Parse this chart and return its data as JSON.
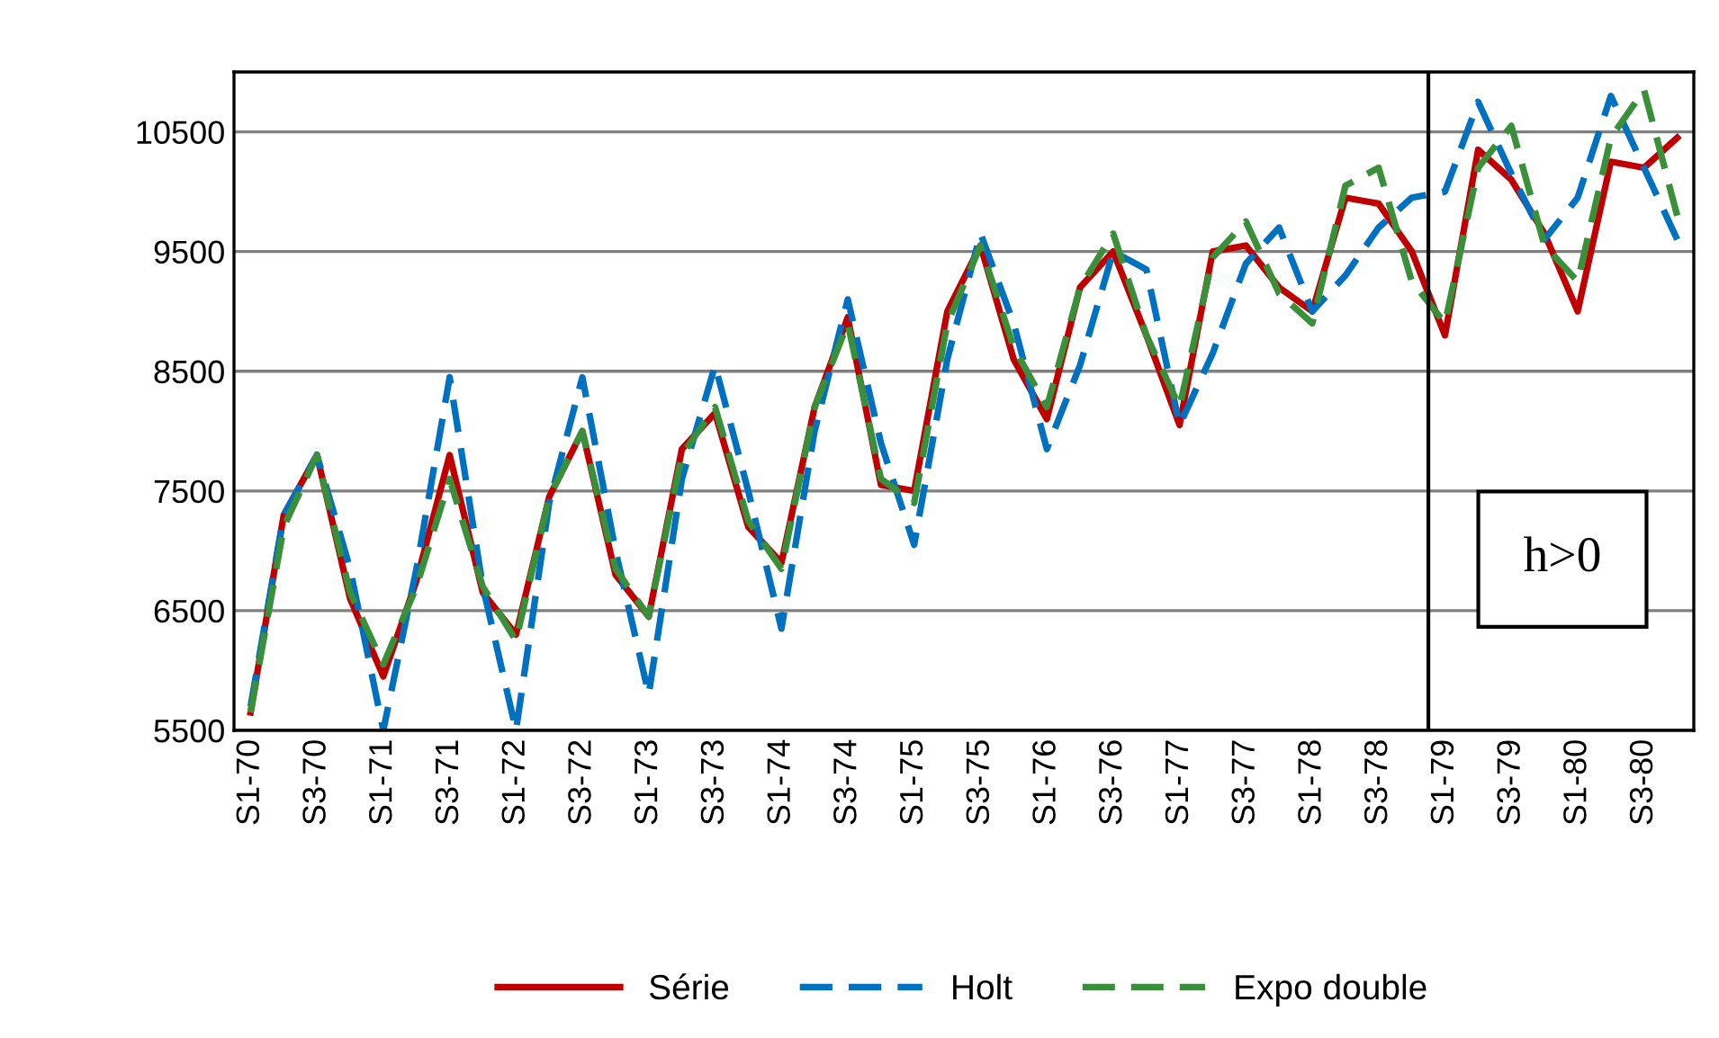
{
  "chart_data": {
    "type": "line",
    "categories": [
      "S1-70",
      null,
      "S3-70",
      null,
      "S1-71",
      null,
      "S3-71",
      null,
      "S1-72",
      null,
      "S3-72",
      null,
      "S1-73",
      null,
      "S3-73",
      null,
      "S1-74",
      null,
      "S3-74",
      null,
      "S1-75",
      null,
      "S3-75",
      null,
      "S1-76",
      null,
      "S3-76",
      null,
      "S1-77",
      null,
      "S3-77",
      null,
      "S1-78",
      null,
      "S3-78",
      null,
      "S1-79",
      null,
      "S3-79",
      null,
      "S1-80",
      null,
      "S3-80",
      null
    ],
    "series": [
      {
        "name": "Série",
        "color": "#c00000",
        "line_style": "solid",
        "values": [
          5650,
          7300,
          7800,
          6600,
          5950,
          6750,
          7800,
          6650,
          6300,
          7450,
          8000,
          6800,
          6450,
          7850,
          8150,
          7200,
          6900,
          8200,
          8950,
          7550,
          7500,
          9000,
          9550,
          8600,
          8100,
          9200,
          9500,
          8800,
          8050,
          9500,
          9550,
          9200,
          9000,
          9950,
          9900,
          9500,
          8800,
          10350,
          10100,
          9650,
          9000,
          10250,
          10200,
          10450
        ]
      },
      {
        "name": "Holt",
        "color": "#0070c0",
        "line_style": "dashed",
        "values": [
          5700,
          7300,
          7800,
          6850,
          5500,
          6850,
          8450,
          6700,
          5500,
          7400,
          8450,
          7000,
          5800,
          7600,
          8550,
          7500,
          6350,
          8000,
          9100,
          7900,
          7050,
          8600,
          9650,
          8900,
          7850,
          8550,
          9500,
          9350,
          8050,
          8650,
          9400,
          9700,
          9000,
          9300,
          9700,
          9950,
          10000,
          10750,
          10150,
          9600,
          9950,
          10800,
          10200,
          9600
        ]
      },
      {
        "name": "Expo double",
        "color": "#3a8f3a",
        "line_style": "dotted",
        "values": [
          5650,
          7200,
          7800,
          6650,
          6050,
          6700,
          7600,
          6700,
          6250,
          7450,
          8000,
          6850,
          6450,
          7800,
          8200,
          7250,
          6850,
          8200,
          8900,
          7600,
          7400,
          8900,
          9550,
          8700,
          8200,
          9200,
          9650,
          8800,
          8200,
          9450,
          9750,
          9150,
          8900,
          10050,
          10200,
          9250,
          8900,
          10200,
          10550,
          9550,
          9250,
          10450,
          10850,
          9800
        ]
      }
    ],
    "ylim": [
      5500,
      11000
    ],
    "yticks": [
      5500,
      6500,
      7500,
      8500,
      9500,
      10500
    ],
    "grid": "y",
    "legend": "bottom",
    "annotations": [
      "h>0"
    ]
  }
}
